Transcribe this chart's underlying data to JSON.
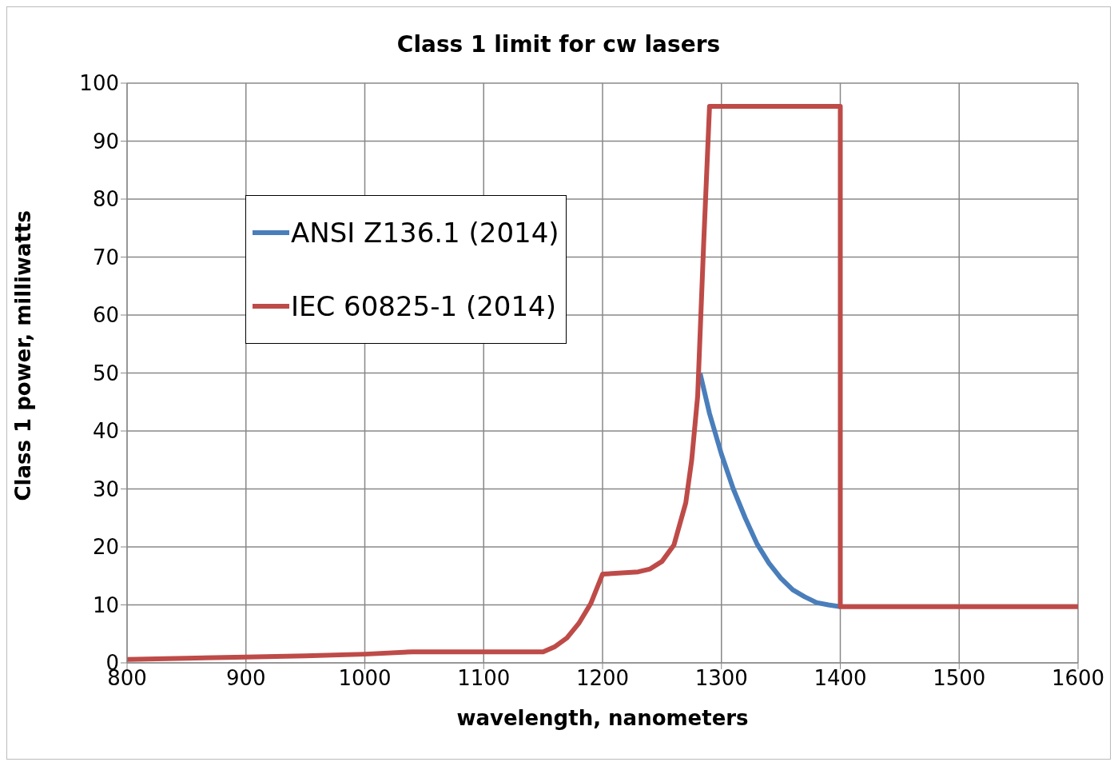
{
  "chart_data": {
    "type": "line",
    "title": "Class 1 limit for cw lasers",
    "xlabel": "wavelength, nanometers",
    "ylabel": "Class 1 power, milliwatts",
    "xlim": [
      800,
      1600
    ],
    "xticks": [
      800,
      900,
      1000,
      1100,
      1200,
      1300,
      1400,
      1500,
      1600
    ],
    "ylim": [
      0,
      100
    ],
    "yticks": [
      0,
      10,
      20,
      30,
      40,
      50,
      60,
      70,
      80,
      90,
      100
    ],
    "grid": true,
    "legend": "top left",
    "marker": "none",
    "line_style": "solid",
    "series": [
      {
        "name": "ANSI Z136.1 (2014)",
        "color": "#4a7ebb",
        "x": [
          1282,
          1290,
          1300,
          1310,
          1320,
          1330,
          1340,
          1350,
          1360,
          1370,
          1380,
          1390,
          1400
        ],
        "values": [
          50,
          43,
          36,
          30,
          25,
          20.5,
          17.2,
          14.6,
          12.6,
          11.4,
          10.4,
          10,
          9.7
        ]
      },
      {
        "name": "IEC 60825-1 (2014)",
        "color": "#be4b48",
        "x": [
          800,
          850,
          900,
          950,
          1000,
          1040,
          1150,
          1160,
          1170,
          1180,
          1190,
          1200,
          1230,
          1240,
          1250,
          1260,
          1270,
          1275,
          1280,
          1285,
          1290,
          1400,
          1400,
          1600
        ],
        "values": [
          0.6,
          0.8,
          1.0,
          1.2,
          1.5,
          1.9,
          1.9,
          2.8,
          4.3,
          6.8,
          10.2,
          15.3,
          15.7,
          16.2,
          17.5,
          20.3,
          27.6,
          35,
          46,
          72,
          96,
          96,
          9.7,
          9.7
        ]
      }
    ]
  }
}
